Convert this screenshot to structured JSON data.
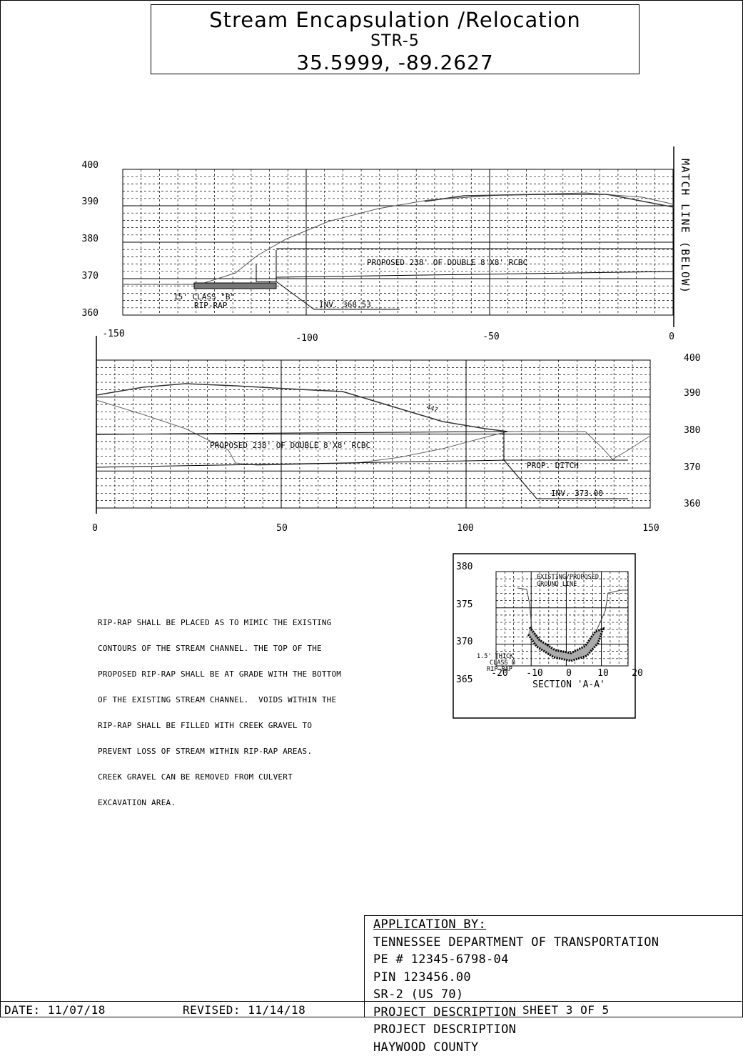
{
  "title": {
    "line1": "Stream Encapsulation /Relocation",
    "line2": "STR-5",
    "line3": "35.5999, -89.2627"
  },
  "profile_top": {
    "match_line": "MATCH LINE (BELOW)",
    "y_ticks": [
      "400",
      "390",
      "380",
      "370",
      "360"
    ],
    "x_ticks": [
      "-150",
      "-100",
      "-50",
      "0"
    ],
    "labels": {
      "proposed": "PROPOSED 238' OF DOUBLE 8'X8' RCBC",
      "riprap1": "15' CLASS \"B\"",
      "riprap2": "RIP-RAP",
      "inv": "INV. 368.53"
    }
  },
  "profile_bottom": {
    "y_ticks": [
      "400",
      "390",
      "380",
      "370",
      "360"
    ],
    "x_ticks": [
      "0",
      "50",
      "100",
      "150"
    ],
    "labels": {
      "proposed": "PROPOSED 238' OF DOUBLE 8'X8' RCBC",
      "ditch": "PROP. DITCH",
      "inv": "INV. 373.00",
      "small": "447"
    }
  },
  "section": {
    "title": "SECTION 'A-A'",
    "y_ticks": [
      "380",
      "375",
      "370",
      "365"
    ],
    "x_ticks": [
      "-20",
      "-10",
      "0",
      "10",
      "20"
    ],
    "labels": {
      "existing1": "EXISTING/PROPOSED",
      "existing2": "GROUND LINE",
      "riprap1": "1.5' THICK",
      "riprap2": "CLASS B",
      "riprap3": "RIP-RAP"
    }
  },
  "note": {
    "lines": [
      "RIP-RAP SHALL BE PLACED AS TO MIMIC THE EXISTING",
      "CONTOURS OF THE STREAM CHANNEL. THE TOP OF THE",
      "PROPOSED RIP-RAP SHALL BE AT GRADE WITH THE BOTTOM",
      "OF THE EXISTING STREAM CHANNEL.  VOIDS WITHIN THE",
      "RIP-RAP SHALL BE FILLED WITH CREEK GRAVEL TO",
      "PREVENT LOSS OF STREAM WITHIN RIP-RAP AREAS.",
      "CREEK GRAVEL CAN BE REMOVED FROM CULVERT",
      "EXCAVATION AREA."
    ]
  },
  "application": {
    "heading": "APPLICATION BY:",
    "lines": [
      "TENNESSEE DEPARTMENT OF TRANSPORTATION",
      "PE # 12345-6798-04",
      "PIN  123456.00",
      "SR-2 (US 70)",
      "PROJECT DESCRIPTION",
      "PROJECT DESCRIPTION",
      "HAYWOOD COUNTY"
    ]
  },
  "footer": {
    "date": "DATE: 11/07/18",
    "revised": "REVISED: 11/14/18",
    "sheet": "SHEET 3 OF 5"
  }
}
